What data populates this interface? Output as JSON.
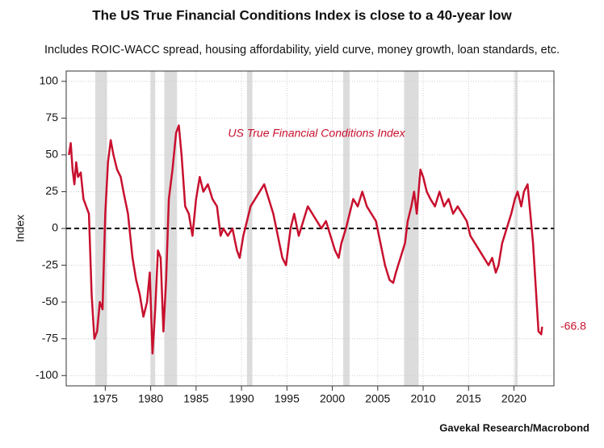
{
  "chart_data": {
    "type": "line",
    "title": "The US True Financial Conditions Index is close to a 40-year low",
    "subtitle": "Includes ROIC-WACC spread, housing affordability, yield curve, money growth, loan standards, etc.",
    "y_label": "Index",
    "source": "Gavekal Research/Macrobond",
    "x": [
      1971.0,
      1971.2,
      1971.4,
      1971.6,
      1971.8,
      1972.0,
      1972.3,
      1972.6,
      1972.9,
      1973.2,
      1973.5,
      1973.8,
      1974.1,
      1974.4,
      1974.7,
      1975.0,
      1975.3,
      1975.6,
      1975.9,
      1976.3,
      1976.7,
      1977.0,
      1977.5,
      1978.0,
      1978.4,
      1978.8,
      1979.2,
      1979.6,
      1979.9,
      1980.2,
      1980.5,
      1980.8,
      1981.1,
      1981.4,
      1981.7,
      1982.0,
      1982.4,
      1982.8,
      1983.1,
      1983.4,
      1983.8,
      1984.2,
      1984.6,
      1985.0,
      1985.4,
      1985.8,
      1986.3,
      1986.8,
      1987.3,
      1987.7,
      1988.0,
      1988.5,
      1989.0,
      1989.5,
      1989.8,
      1990.2,
      1990.6,
      1991.0,
      1991.5,
      1992.0,
      1992.5,
      1993.0,
      1993.5,
      1994.0,
      1994.5,
      1994.9,
      1995.4,
      1995.8,
      1996.3,
      1996.8,
      1997.3,
      1997.8,
      1998.3,
      1998.8,
      1999.3,
      1999.8,
      2000.3,
      2000.7,
      2001.0,
      2001.5,
      2001.9,
      2002.3,
      2002.8,
      2003.3,
      2003.8,
      2004.3,
      2004.8,
      2005.3,
      2005.8,
      2006.3,
      2006.7,
      2007.0,
      2007.5,
      2008.0,
      2008.3,
      2008.7,
      2009.0,
      2009.3,
      2009.7,
      2010.0,
      2010.4,
      2010.8,
      2011.3,
      2011.8,
      2012.3,
      2012.8,
      2013.3,
      2013.8,
      2014.3,
      2014.8,
      2015.2,
      2015.7,
      2016.2,
      2016.7,
      2017.2,
      2017.6,
      2018.0,
      2018.3,
      2018.7,
      2019.2,
      2019.7,
      2020.1,
      2020.4,
      2020.8,
      2021.1,
      2021.5,
      2021.8,
      2022.1,
      2022.4,
      2022.7,
      2023.0,
      2023.1
    ],
    "series": [
      {
        "name": "US True Financial Conditions Index",
        "color": "#c8102e",
        "values": [
          50,
          58,
          40,
          30,
          45,
          35,
          38,
          20,
          15,
          10,
          -45,
          -75,
          -70,
          -50,
          -55,
          10,
          45,
          60,
          50,
          40,
          35,
          25,
          10,
          -20,
          -35,
          -45,
          -60,
          -50,
          -30,
          -85,
          -55,
          -15,
          -20,
          -70,
          -35,
          20,
          40,
          65,
          70,
          50,
          15,
          10,
          -5,
          20,
          35,
          25,
          30,
          20,
          15,
          -5,
          0,
          -5,
          0,
          -15,
          -20,
          -5,
          5,
          15,
          20,
          25,
          30,
          20,
          10,
          -5,
          -20,
          -25,
          0,
          10,
          -5,
          5,
          15,
          10,
          5,
          0,
          5,
          -5,
          -15,
          -20,
          -10,
          0,
          10,
          20,
          15,
          25,
          15,
          10,
          5,
          -10,
          -25,
          -35,
          -37,
          -30,
          -20,
          -10,
          5,
          15,
          25,
          10,
          40,
          35,
          25,
          20,
          15,
          25,
          15,
          20,
          10,
          15,
          10,
          5,
          -5,
          -10,
          -15,
          -20,
          -25,
          -20,
          -30,
          -25,
          -10,
          0,
          10,
          20,
          25,
          15,
          25,
          30,
          10,
          -10,
          -40,
          -70,
          -72,
          -66.8
        ]
      }
    ],
    "shaded_ranges": [
      [
        1973.9,
        1975.2
      ],
      [
        1980.0,
        1980.5
      ],
      [
        1981.5,
        1982.9
      ],
      [
        1990.6,
        1991.2
      ],
      [
        2001.2,
        2001.9
      ],
      [
        2007.9,
        2009.5
      ],
      [
        2020.1,
        2020.4
      ]
    ],
    "shade_color": "#dcdcdc",
    "xlim": [
      1970.7,
      2024.4
    ],
    "xticks": [
      1975,
      1980,
      1985,
      1990,
      1995,
      2000,
      2005,
      2010,
      2015,
      2020
    ],
    "ylim": [
      -107,
      107
    ],
    "yticks": [
      -100,
      -75,
      -50,
      -25,
      0,
      25,
      50,
      75,
      100
    ],
    "grid": true,
    "zero_line": true
  }
}
